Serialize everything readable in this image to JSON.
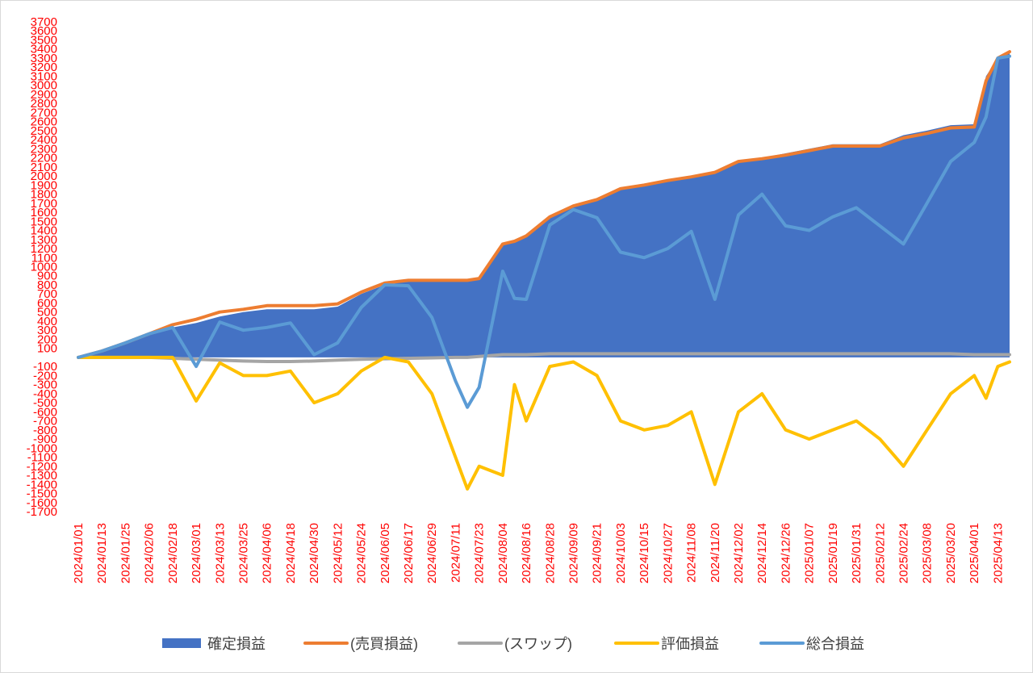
{
  "chart_data": {
    "type": "area",
    "title": "",
    "xlabel": "",
    "ylabel": "",
    "ylim": [
      -1700,
      3700
    ],
    "ytick_step": 100,
    "grid": false,
    "legend_position": "bottom",
    "tick_color": "#ff0000",
    "x_tick_labels": [
      "2024/01/01",
      "2024/01/13",
      "2024/01/25",
      "2024/02/06",
      "2024/02/18",
      "2024/03/01",
      "2024/03/13",
      "2024/03/25",
      "2024/04/06",
      "2024/04/18",
      "2024/04/30",
      "2024/05/12",
      "2024/05/24",
      "2024/06/05",
      "2024/06/17",
      "2024/06/29",
      "2024/07/11",
      "2024/07/23",
      "2024/08/04",
      "2024/08/16",
      "2024/08/28",
      "2024/09/09",
      "2024/09/21",
      "2024/10/03",
      "2024/10/15",
      "2024/10/27",
      "2024/11/08",
      "2024/11/20",
      "2024/12/02",
      "2024/12/14",
      "2024/12/26",
      "2025/01/07",
      "2025/01/19",
      "2025/01/31",
      "2025/02/12",
      "2025/02/24",
      "2025/03/08",
      "2025/03/20",
      "2025/04/01",
      "2025/04/13"
    ],
    "x": [
      "2024/01/01",
      "2024/01/13",
      "2024/01/25",
      "2024/02/06",
      "2024/02/18",
      "2024/03/01",
      "2024/03/13",
      "2024/03/25",
      "2024/04/06",
      "2024/04/18",
      "2024/04/30",
      "2024/05/12",
      "2024/05/24",
      "2024/06/05",
      "2024/06/17",
      "2024/06/29",
      "2024/07/11",
      "2024/07/17",
      "2024/07/23",
      "2024/08/04",
      "2024/08/10",
      "2024/08/16",
      "2024/08/28",
      "2024/09/09",
      "2024/09/21",
      "2024/10/03",
      "2024/10/15",
      "2024/10/27",
      "2024/11/08",
      "2024/11/20",
      "2024/12/02",
      "2024/12/14",
      "2024/12/26",
      "2025/01/07",
      "2025/01/19",
      "2025/01/31",
      "2025/02/12",
      "2025/02/24",
      "2025/03/08",
      "2025/03/20",
      "2025/04/01",
      "2025/04/07",
      "2025/04/13",
      "2025/04/19"
    ],
    "series": [
      {
        "name": "確定損益",
        "kind": "area",
        "color": "#4472c4",
        "values": [
          0,
          70,
          160,
          260,
          330,
          380,
          450,
          500,
          530,
          530,
          530,
          560,
          700,
          800,
          840,
          840,
          840,
          840,
          870,
          1250,
          1280,
          1340,
          1560,
          1680,
          1740,
          1860,
          1900,
          1950,
          1990,
          2040,
          2170,
          2200,
          2250,
          2300,
          2350,
          2350,
          2350,
          2450,
          2500,
          2560,
          2570,
          3100,
          3300,
          3370
        ]
      },
      {
        "name": "(売買損益)",
        "kind": "line",
        "color": "#ed7d31",
        "values": [
          0,
          70,
          160,
          260,
          360,
          420,
          500,
          530,
          570,
          570,
          570,
          590,
          720,
          820,
          850,
          850,
          850,
          850,
          870,
          1250,
          1280,
          1340,
          1550,
          1670,
          1740,
          1860,
          1900,
          1950,
          1990,
          2040,
          2160,
          2190,
          2230,
          2280,
          2330,
          2330,
          2330,
          2420,
          2470,
          2530,
          2540,
          3050,
          3300,
          3370
        ]
      },
      {
        "name": "(スワップ)",
        "kind": "line",
        "color": "#a5a5a5",
        "values": [
          0,
          0,
          0,
          0,
          -10,
          -20,
          -30,
          -40,
          -45,
          -45,
          -40,
          -30,
          -20,
          -15,
          -10,
          -5,
          0,
          0,
          10,
          30,
          30,
          30,
          40,
          40,
          40,
          40,
          40,
          40,
          40,
          40,
          40,
          40,
          40,
          40,
          40,
          40,
          40,
          40,
          40,
          40,
          30,
          30,
          30,
          30
        ]
      },
      {
        "name": "評価損益",
        "kind": "line",
        "color": "#ffc000",
        "values": [
          0,
          0,
          0,
          0,
          0,
          -480,
          -60,
          -200,
          -200,
          -150,
          -500,
          -400,
          -150,
          0,
          -50,
          -400,
          -1100,
          -1450,
          -1200,
          -1300,
          -300,
          -700,
          -100,
          -50,
          -200,
          -700,
          -800,
          -750,
          -600,
          -1400,
          -600,
          -400,
          -800,
          -900,
          -800,
          -700,
          -900,
          -1200,
          -800,
          -400,
          -200,
          -450,
          -100,
          -50
        ]
      },
      {
        "name": "総合損益",
        "kind": "line",
        "color": "#5b9bd5",
        "values": [
          0,
          70,
          160,
          260,
          330,
          -100,
          390,
          300,
          330,
          380,
          30,
          160,
          550,
          800,
          790,
          440,
          -260,
          -550,
          -330,
          950,
          650,
          640,
          1460,
          1630,
          1540,
          1160,
          1100,
          1200,
          1390,
          640,
          1570,
          1800,
          1450,
          1400,
          1550,
          1650,
          1450,
          1250,
          1700,
          2160,
          2370,
          2650,
          3300,
          3320
        ]
      }
    ]
  }
}
